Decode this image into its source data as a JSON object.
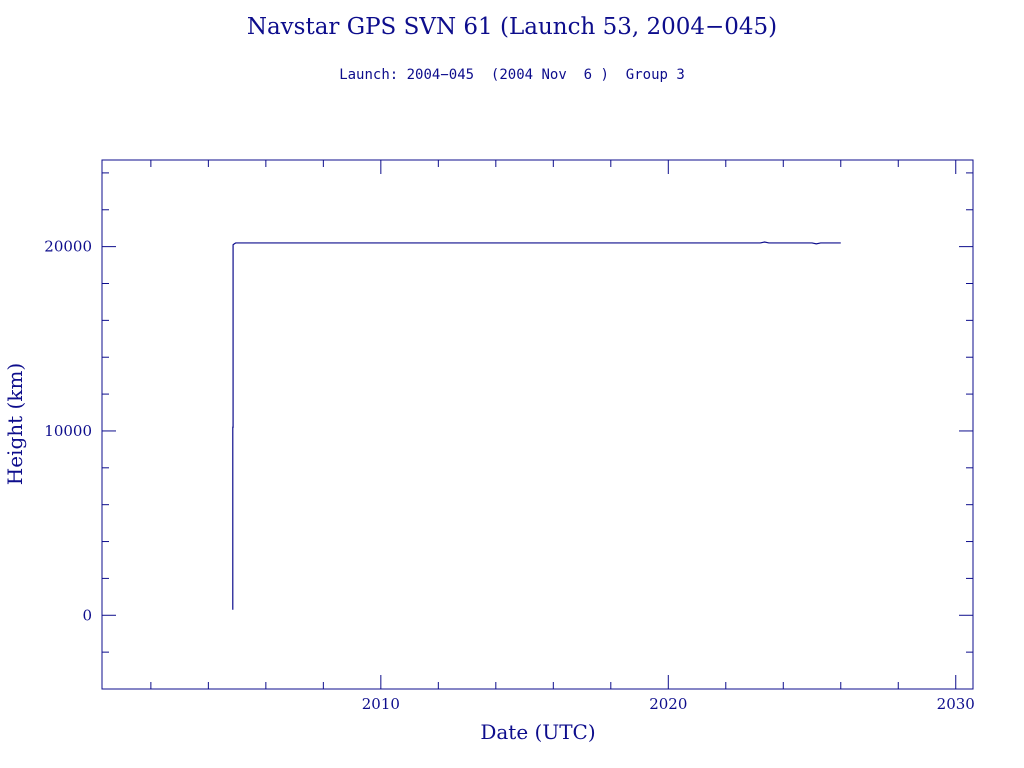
{
  "chart_data": {
    "type": "line",
    "title": "Navstar GPS SVN 61 (Launch 53, 2004−045)",
    "subtitle": "Launch: 2004−045  (2004 Nov  6 )  Group 3",
    "xlabel": "Date (UTC)",
    "ylabel": "Height (km)",
    "xlim": [
      2000.3,
      2030.6
    ],
    "ylim": [
      -4000,
      24700
    ],
    "x_ticks": [
      2010,
      2020,
      2030
    ],
    "y_ticks": [
      0,
      10000,
      20000
    ],
    "x_minor_step": 2,
    "y_minor_step": 2000,
    "grid": false,
    "series": [
      {
        "color": "#0d0d8c",
        "x": [
          2004.85,
          2004.85,
          2004.86,
          2004.86,
          2004.9,
          2004.95,
          2005.1,
          2010,
          2015,
          2020,
          2023.2,
          2023.35,
          2023.5,
          2025,
          2025.15,
          2025.3,
          2026.0
        ],
        "y": [
          300,
          10200,
          10200,
          20100,
          20150,
          20200,
          20200,
          20200,
          20200,
          20200,
          20200,
          20250,
          20200,
          20200,
          20150,
          20200,
          20200
        ]
      }
    ]
  }
}
